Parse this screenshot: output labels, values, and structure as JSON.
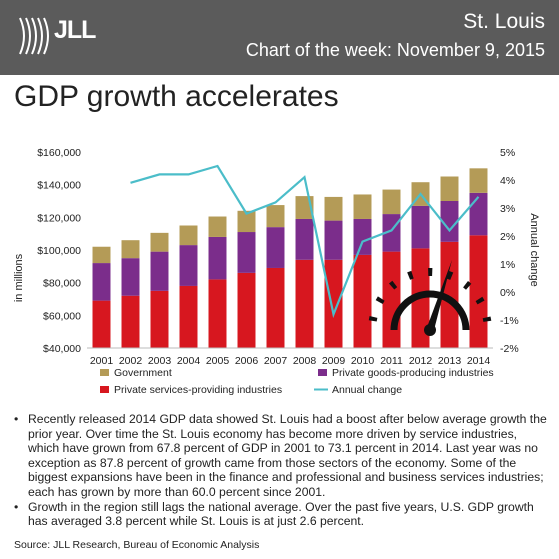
{
  "header": {
    "logo_text": "JLL",
    "city": "St. Louis",
    "subtitle": "Chart of the week: November 9, 2015"
  },
  "headline": "GDP growth accelerates",
  "colors": {
    "header_bg": "#5b5b5b",
    "government": "#b49b57",
    "goods": "#7b2d8b",
    "services": "#d7171f",
    "line": "#4bbdc9"
  },
  "chart_data": {
    "type": "bar",
    "stacked": true,
    "categories": [
      "2001",
      "2002",
      "2003",
      "2004",
      "2005",
      "2006",
      "2007",
      "2008",
      "2009",
      "2010",
      "2011",
      "2012",
      "2013",
      "2014"
    ],
    "series": [
      {
        "name": "Private services-providing industries",
        "color": "#d7171f",
        "values": [
          69000,
          72000,
          75000,
          78000,
          82000,
          86000,
          89000,
          94000,
          94000,
          97000,
          99000,
          101000,
          105000,
          109000
        ]
      },
      {
        "name": "Private goods-producing industries",
        "color": "#7b2d8b",
        "values": [
          23000,
          23000,
          24000,
          25000,
          26000,
          25000,
          25000,
          25000,
          24000,
          22000,
          23000,
          26000,
          25000,
          26000
        ]
      },
      {
        "name": "Government",
        "color": "#b49b57",
        "values": [
          10000,
          11000,
          11500,
          12000,
          12500,
          13000,
          13500,
          14000,
          14500,
          15000,
          15000,
          14500,
          15000,
          15000
        ]
      }
    ],
    "line_series": {
      "name": "Annual change",
      "color": "#4bbdc9",
      "values": [
        null,
        3.9,
        4.2,
        4.2,
        4.5,
        2.8,
        3.2,
        4.1,
        -0.8,
        1.8,
        2.2,
        3.5,
        2.2,
        3.4
      ]
    },
    "ylabel": "in millions",
    "y2label": "Annual change",
    "ylim": [
      40000,
      160000
    ],
    "y_ticks": [
      "$40,000",
      "$60,000",
      "$80,000",
      "$100,000",
      "$120,000",
      "$140,000",
      "$160,000"
    ],
    "y2lim": [
      -2,
      5
    ],
    "y2_ticks": [
      "-2%",
      "-1%",
      "0%",
      "1%",
      "2%",
      "3%",
      "4%",
      "5%"
    ],
    "grid": false,
    "legend": [
      "Government",
      "Private goods-producing industries",
      "Private services-providing industries",
      "Annual change"
    ]
  },
  "bullets": [
    "Recently released 2014 GDP data showed St. Louis had a boost after below average growth the prior year. Over time the St. Louis economy has become more driven by service industries, which have grown from 67.8 percent of GDP in 2001 to 73.1 percent in 2014. Last year was no exception as 87.8 percent of growth came from those sectors of the economy. Some of the biggest expansions have been in the finance and professional and business services industries; each has grown by more than 60.0 percent since 2001.",
    "Growth in the region still lags the national average. Over the past five years, U.S. GDP growth has averaged 3.8 percent while St. Louis is at just 2.6 percent."
  ],
  "bullet_symbol": "•",
  "source": "Source: JLL Research, Bureau of Economic Analysis"
}
